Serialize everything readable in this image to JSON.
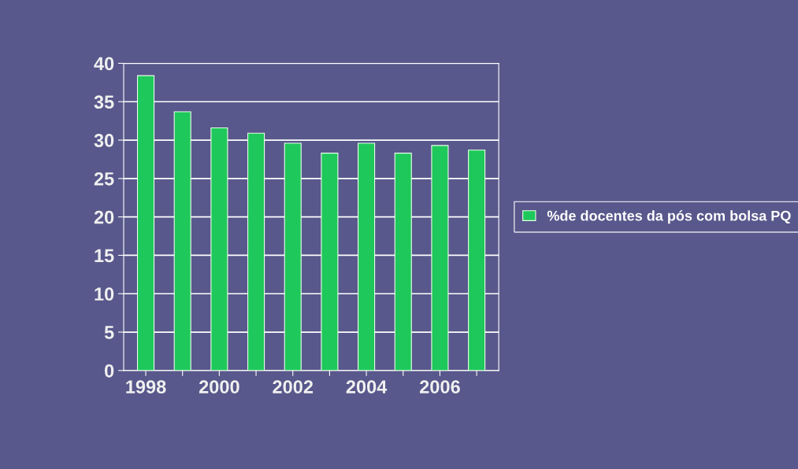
{
  "chart_data": {
    "type": "bar",
    "categories": [
      "1998",
      null,
      "2000",
      null,
      "2002",
      null,
      "2004",
      null,
      "2006",
      null
    ],
    "series": [
      {
        "name": "%de docentes da pós com bolsa PQ",
        "color": "#1ec85a",
        "values": [
          38.4,
          33.7,
          31.6,
          30.9,
          29.6,
          28.3,
          29.6,
          28.3,
          29.3,
          28.7
        ]
      }
    ],
    "ylim": [
      0,
      40
    ],
    "yticks": [
      0,
      5,
      10,
      15,
      20,
      25,
      30,
      35,
      40
    ],
    "grid": "y",
    "legend": "right"
  }
}
